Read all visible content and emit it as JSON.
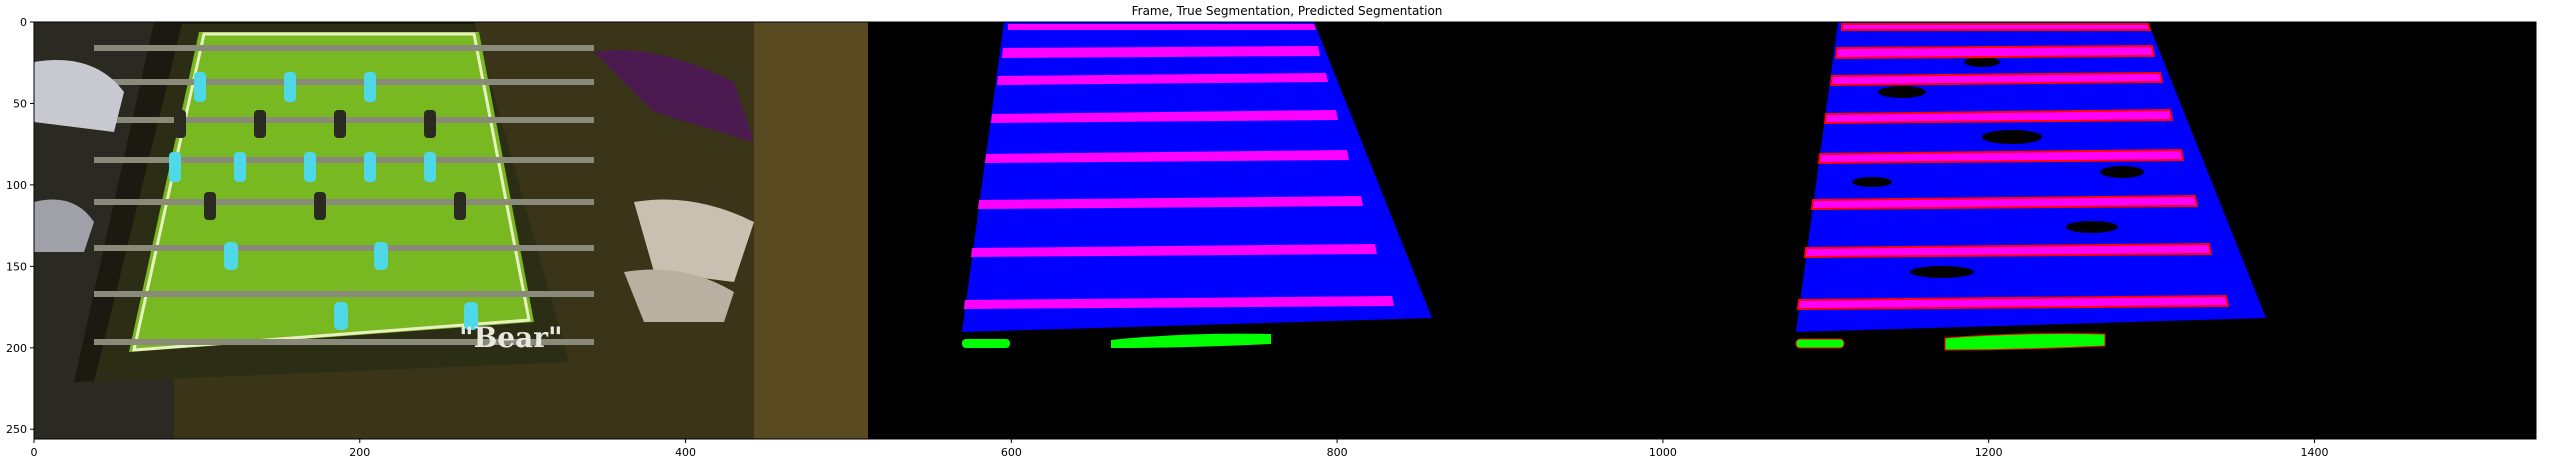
{
  "chart_data": {
    "type": "image",
    "title": "Frame, True Segmentation, Predicted Segmentation",
    "xlim": [
      0,
      1536
    ],
    "ylim": [
      256,
      0
    ],
    "xticks": [
      0,
      200,
      400,
      600,
      800,
      1000,
      1200,
      1400
    ],
    "yticks": [
      0,
      50,
      100,
      150,
      200,
      250
    ],
    "panels": [
      {
        "name": "frame",
        "x_range": [
          0,
          512
        ]
      },
      {
        "name": "true-segmentation",
        "x_range": [
          512,
          1024
        ]
      },
      {
        "name": "predicted-segmentation",
        "x_range": [
          1024,
          1536
        ]
      }
    ],
    "colors": {
      "table": "#0000ff",
      "rods": "#ff00ff",
      "players": "#00ff00",
      "errors": "#ff0000",
      "background": "#000000"
    }
  }
}
